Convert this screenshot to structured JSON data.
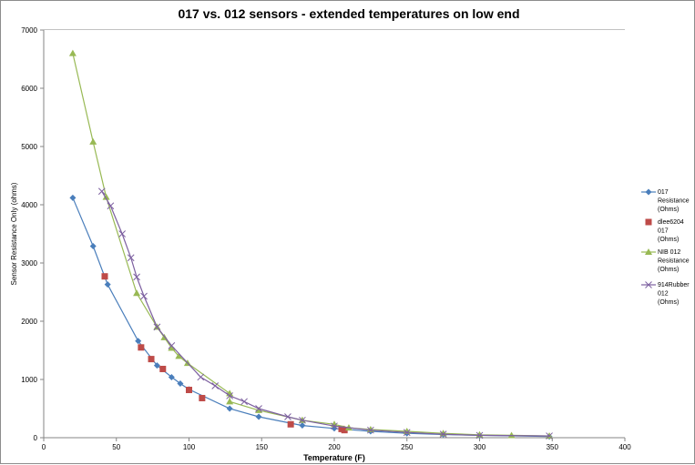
{
  "chart_data": {
    "type": "scatter",
    "title": "017 vs. 012 sensors  - extended temperatures on low end",
    "xlabel": "Temperature (F)",
    "ylabel": "Sensor Resistance Only (ohms)",
    "xlim": [
      0,
      400
    ],
    "ylim": [
      0,
      7000
    ],
    "x_ticks": [
      "0",
      "50",
      "100",
      "150",
      "200",
      "250",
      "300",
      "350",
      "400"
    ],
    "y_ticks": [
      "0",
      "1000",
      "2000",
      "3000",
      "4000",
      "5000",
      "6000",
      "7000"
    ],
    "grid": "horizontal",
    "legend_position": "right",
    "series": [
      {
        "name": "017 Resistance (Ohms)",
        "legend_lines": [
          "017",
          "Resistance",
          "(Ohms)"
        ],
        "color": "#4a7ebb",
        "marker": "diamond",
        "line": true,
        "points": [
          [
            20,
            4120
          ],
          [
            34,
            3290
          ],
          [
            44,
            2630
          ],
          [
            65,
            1660
          ],
          [
            78,
            1240
          ],
          [
            88,
            1040
          ],
          [
            94,
            930
          ],
          [
            100,
            830
          ],
          [
            128,
            500
          ],
          [
            148,
            360
          ],
          [
            178,
            210
          ],
          [
            200,
            160
          ],
          [
            225,
            110
          ],
          [
            250,
            75
          ],
          [
            275,
            55
          ],
          [
            300,
            40
          ],
          [
            348,
            20
          ]
        ]
      },
      {
        "name": "dlee6204 017 (Ohms)",
        "legend_lines": [
          "dlee6204",
          "017",
          "(Ohms)"
        ],
        "color": "#be4b48",
        "marker": "square",
        "line": false,
        "points": [
          [
            42,
            2770
          ],
          [
            67,
            1550
          ],
          [
            74,
            1350
          ],
          [
            82,
            1180
          ],
          [
            100,
            820
          ],
          [
            109,
            680
          ],
          [
            170,
            230
          ],
          [
            205,
            150
          ],
          [
            207,
            130
          ]
        ]
      },
      {
        "name": "NIB 012 Resistance (Ohms)",
        "legend_lines": [
          "NIB 012",
          "Resistance",
          "(Ohms)"
        ],
        "color": "#98b954",
        "marker": "triangle",
        "line": true,
        "points": [
          [
            20,
            6600
          ],
          [
            34,
            5080
          ],
          [
            43,
            4130
          ],
          [
            64,
            2480
          ],
          [
            78,
            1900
          ],
          [
            83,
            1720
          ],
          [
            88,
            1540
          ],
          [
            93,
            1400
          ],
          [
            99,
            1280
          ],
          [
            128,
            760
          ],
          [
            128,
            620
          ],
          [
            148,
            470
          ],
          [
            178,
            300
          ],
          [
            200,
            230
          ],
          [
            210,
            170
          ],
          [
            225,
            140
          ],
          [
            250,
            110
          ],
          [
            275,
            75
          ],
          [
            300,
            50
          ],
          [
            322,
            40
          ],
          [
            348,
            30
          ]
        ]
      },
      {
        "name": "914Rubber 012 (Ohms)",
        "legend_lines": [
          "914Rubber",
          "012",
          "(Ohms)"
        ],
        "color": "#7d60a0",
        "marker": "x",
        "line": true,
        "points": [
          [
            40,
            4230
          ],
          [
            46,
            3980
          ],
          [
            54,
            3500
          ],
          [
            60,
            3090
          ],
          [
            64,
            2760
          ],
          [
            69,
            2430
          ],
          [
            78,
            1900
          ],
          [
            88,
            1580
          ],
          [
            108,
            1040
          ],
          [
            118,
            890
          ],
          [
            128,
            720
          ],
          [
            138,
            620
          ],
          [
            148,
            500
          ],
          [
            168,
            360
          ],
          [
            178,
            300
          ],
          [
            200,
            200
          ],
          [
            225,
            130
          ],
          [
            250,
            90
          ],
          [
            275,
            60
          ],
          [
            300,
            40
          ],
          [
            348,
            30
          ]
        ]
      }
    ]
  }
}
